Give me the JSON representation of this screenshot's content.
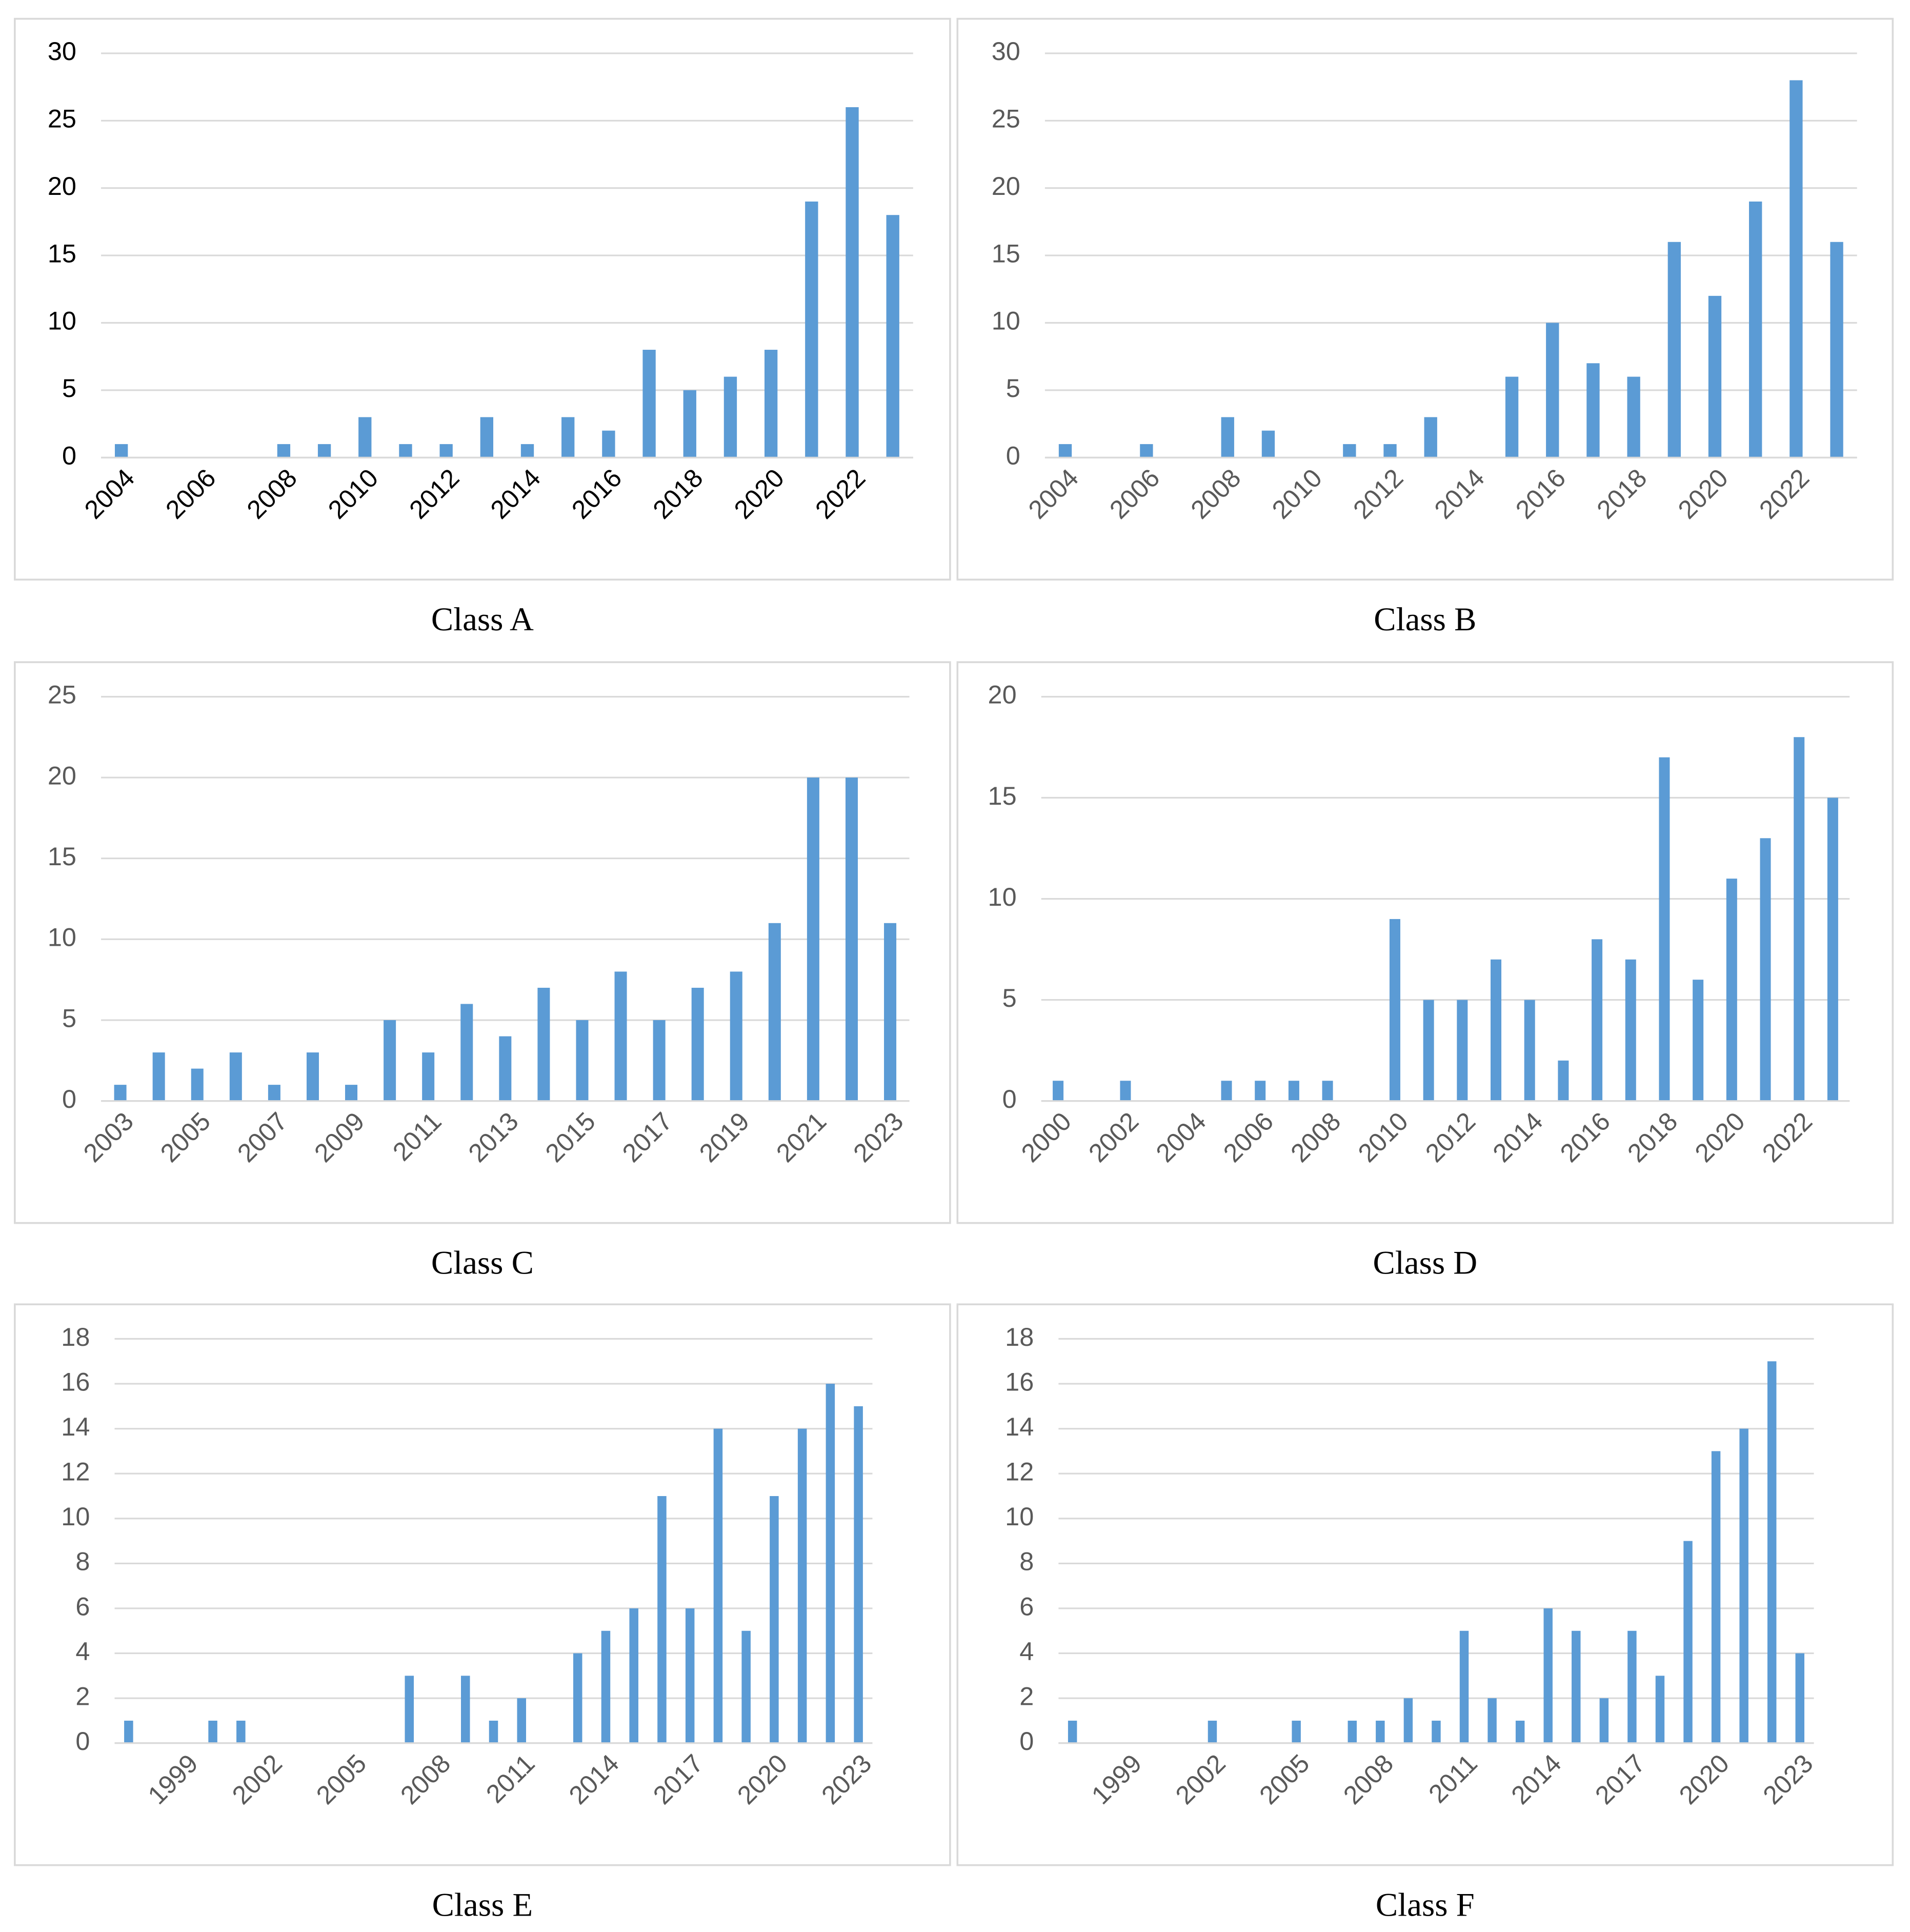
{
  "chart_data": [
    {
      "type": "bar",
      "title": "Class A",
      "color": "#5b9bd5",
      "tick_color": "#000000",
      "grid": true,
      "categories": [
        "2004",
        null,
        "2006",
        null,
        "2008",
        null,
        "2010",
        null,
        "2012",
        null,
        "2014",
        null,
        "2016",
        null,
        "2018",
        null,
        "2020",
        null,
        "2022",
        null
      ],
      "values": [
        1,
        0,
        0,
        0,
        1,
        1,
        3,
        1,
        1,
        3,
        1,
        3,
        2,
        8,
        5,
        6,
        8,
        19,
        26,
        18
      ],
      "ylim": [
        0,
        30
      ],
      "yticks": [
        0,
        5,
        10,
        15,
        20,
        25,
        30
      ]
    },
    {
      "type": "bar",
      "title": "Class B",
      "color": "#5b9bd5",
      "tick_color": "#595959",
      "grid": true,
      "categories": [
        "2004",
        null,
        "2006",
        null,
        "2008",
        null,
        "2010",
        null,
        "2012",
        null,
        "2014",
        null,
        "2016",
        null,
        "2018",
        null,
        "2020",
        null,
        "2022",
        null
      ],
      "values": [
        1,
        0,
        1,
        0,
        3,
        2,
        0,
        1,
        1,
        3,
        0,
        6,
        10,
        7,
        6,
        16,
        12,
        19,
        28,
        16
      ],
      "ylim": [
        0,
        30
      ],
      "yticks": [
        0,
        5,
        10,
        15,
        20,
        25,
        30
      ]
    },
    {
      "type": "bar",
      "title": "Class C",
      "color": "#5b9bd5",
      "tick_color": "#595959",
      "grid": true,
      "categories": [
        "2003",
        null,
        "2005",
        null,
        "2007",
        null,
        "2009",
        null,
        "2011",
        null,
        "2013",
        null,
        "2015",
        null,
        "2017",
        null,
        "2019",
        null,
        "2021",
        null,
        "2023"
      ],
      "values": [
        1,
        3,
        2,
        3,
        1,
        3,
        1,
        5,
        3,
        6,
        4,
        7,
        5,
        8,
        5,
        7,
        8,
        11,
        20,
        20,
        11
      ],
      "ylim": [
        0,
        25
      ],
      "yticks": [
        0,
        5,
        10,
        15,
        20,
        25
      ]
    },
    {
      "type": "bar",
      "title": "Class D",
      "color": "#5b9bd5",
      "tick_color": "#595959",
      "grid": true,
      "categories": [
        "2000",
        null,
        "2002",
        null,
        "2004",
        null,
        "2006",
        null,
        "2008",
        null,
        "2010",
        null,
        "2012",
        null,
        "2014",
        null,
        "2016",
        null,
        "2018",
        null,
        "2020",
        null,
        "2022",
        null
      ],
      "values": [
        1,
        0,
        1,
        0,
        0,
        1,
        1,
        1,
        1,
        0,
        9,
        5,
        5,
        7,
        5,
        2,
        8,
        7,
        17,
        6,
        11,
        13,
        18,
        15
      ],
      "ylim": [
        0,
        20
      ],
      "yticks": [
        0,
        5,
        10,
        15,
        20
      ]
    },
    {
      "type": "bar",
      "title": "Class E",
      "color": "#5b9bd5",
      "tick_color": "#595959",
      "grid": true,
      "categories": [
        null,
        null,
        "1999",
        null,
        null,
        "2002",
        null,
        null,
        "2005",
        null,
        null,
        "2008",
        null,
        null,
        "2011",
        null,
        null,
        "2014",
        null,
        null,
        "2017",
        null,
        null,
        "2020",
        null,
        null,
        "2023"
      ],
      "values": [
        1,
        0,
        0,
        1,
        1,
        0,
        0,
        0,
        0,
        0,
        3,
        0,
        3,
        1,
        2,
        0,
        4,
        5,
        6,
        11,
        6,
        14,
        5,
        11,
        14,
        16,
        15
      ],
      "ylim": [
        0,
        18
      ],
      "yticks": [
        0,
        2,
        4,
        6,
        8,
        10,
        12,
        14,
        16,
        18
      ]
    },
    {
      "type": "bar",
      "title": "Class F",
      "color": "#5b9bd5",
      "tick_color": "#595959",
      "grid": true,
      "categories": [
        null,
        null,
        "1999",
        null,
        null,
        "2002",
        null,
        null,
        "2005",
        null,
        null,
        "2008",
        null,
        null,
        "2011",
        null,
        null,
        "2014",
        null,
        null,
        "2017",
        null,
        null,
        "2020",
        null,
        null,
        "2023"
      ],
      "values": [
        1,
        0,
        0,
        0,
        0,
        1,
        0,
        0,
        1,
        0,
        1,
        1,
        2,
        1,
        5,
        2,
        1,
        6,
        5,
        2,
        5,
        3,
        9,
        13,
        14,
        17,
        4
      ],
      "ylim": [
        0,
        18
      ],
      "yticks": [
        0,
        2,
        4,
        6,
        8,
        10,
        12,
        14,
        16,
        18
      ]
    }
  ]
}
